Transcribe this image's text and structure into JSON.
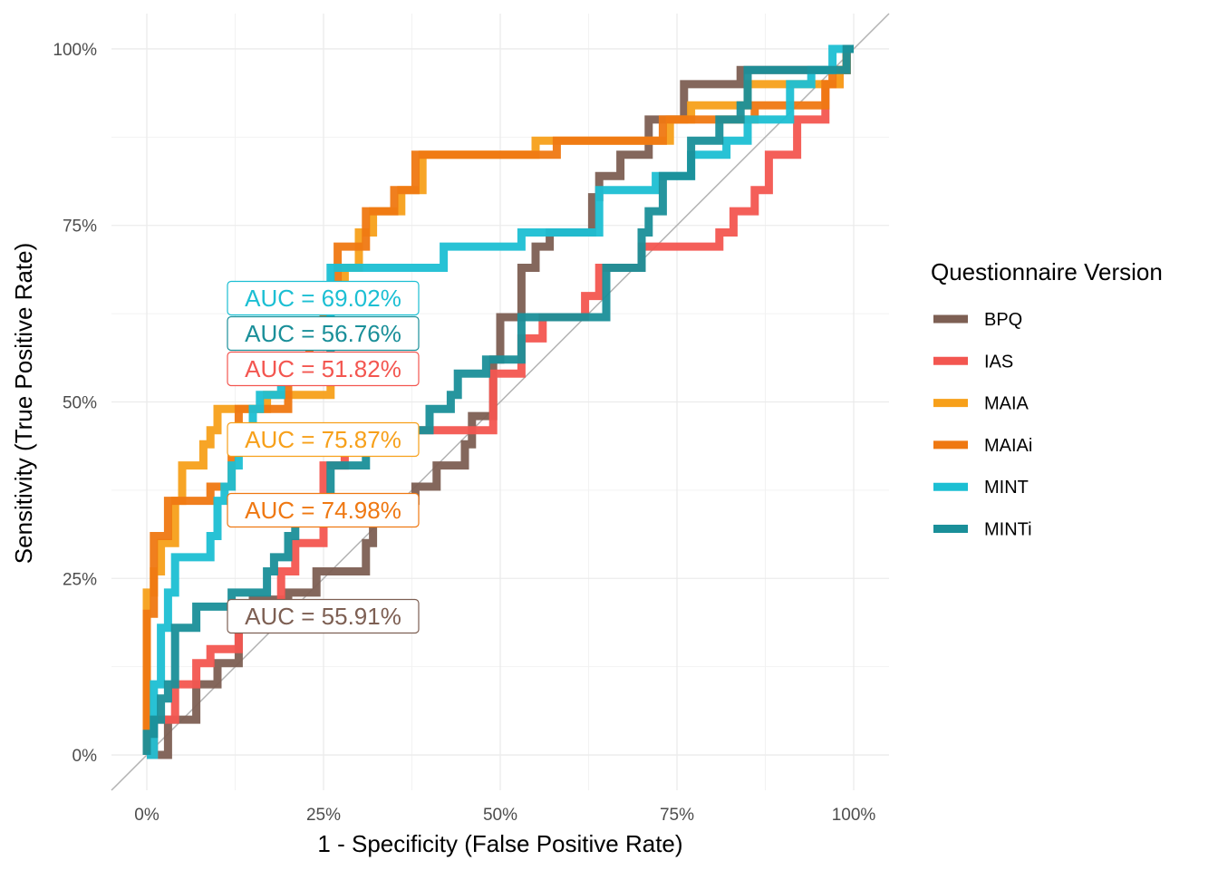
{
  "chart_data": {
    "type": "line",
    "title": "",
    "xlabel": "1 - Specificity (False Positive Rate)",
    "ylabel": "Sensitivity (True Positive Rate)",
    "xlim": [
      -0.05,
      1.05
    ],
    "ylim": [
      -0.05,
      1.05
    ],
    "x_ticks": [
      "0%",
      "25%",
      "50%",
      "75%",
      "100%"
    ],
    "y_ticks": [
      "0%",
      "25%",
      "50%",
      "75%",
      "100%"
    ],
    "grid": true,
    "diagonal_reference": true,
    "legend": {
      "title": "Questionnaire Version",
      "position": "right"
    },
    "series": [
      {
        "name": "BPQ",
        "color": "#7d5f53",
        "auc_label": "AUC = 55.91%",
        "points": [
          [
            0,
            0
          ],
          [
            0.03,
            0
          ],
          [
            0.03,
            0.05
          ],
          [
            0.07,
            0.05
          ],
          [
            0.07,
            0.1
          ],
          [
            0.1,
            0.1
          ],
          [
            0.1,
            0.13
          ],
          [
            0.13,
            0.13
          ],
          [
            0.13,
            0.18
          ],
          [
            0.15,
            0.18
          ],
          [
            0.15,
            0.22
          ],
          [
            0.2,
            0.22
          ],
          [
            0.2,
            0.23
          ],
          [
            0.24,
            0.23
          ],
          [
            0.24,
            0.26
          ],
          [
            0.31,
            0.26
          ],
          [
            0.31,
            0.3
          ],
          [
            0.32,
            0.3
          ],
          [
            0.32,
            0.36
          ],
          [
            0.38,
            0.36
          ],
          [
            0.38,
            0.38
          ],
          [
            0.41,
            0.38
          ],
          [
            0.41,
            0.41
          ],
          [
            0.45,
            0.41
          ],
          [
            0.45,
            0.44
          ],
          [
            0.46,
            0.44
          ],
          [
            0.46,
            0.48
          ],
          [
            0.49,
            0.48
          ],
          [
            0.49,
            0.56
          ],
          [
            0.5,
            0.56
          ],
          [
            0.5,
            0.62
          ],
          [
            0.53,
            0.62
          ],
          [
            0.53,
            0.69
          ],
          [
            0.55,
            0.69
          ],
          [
            0.55,
            0.72
          ],
          [
            0.57,
            0.72
          ],
          [
            0.57,
            0.74
          ],
          [
            0.63,
            0.74
          ],
          [
            0.63,
            0.79
          ],
          [
            0.64,
            0.79
          ],
          [
            0.64,
            0.82
          ],
          [
            0.67,
            0.82
          ],
          [
            0.67,
            0.85
          ],
          [
            0.71,
            0.85
          ],
          [
            0.71,
            0.9
          ],
          [
            0.76,
            0.9
          ],
          [
            0.76,
            0.95
          ],
          [
            0.84,
            0.95
          ],
          [
            0.84,
            0.97
          ],
          [
            0.99,
            0.97
          ],
          [
            0.99,
            1.0
          ],
          [
            1.0,
            1.0
          ]
        ]
      },
      {
        "name": "IAS",
        "color": "#f35650",
        "auc_label": "AUC = 51.82%",
        "points": [
          [
            0,
            0
          ],
          [
            0.01,
            0
          ],
          [
            0.01,
            0.05
          ],
          [
            0.04,
            0.05
          ],
          [
            0.04,
            0.1
          ],
          [
            0.07,
            0.1
          ],
          [
            0.07,
            0.13
          ],
          [
            0.09,
            0.13
          ],
          [
            0.09,
            0.15
          ],
          [
            0.13,
            0.15
          ],
          [
            0.13,
            0.18
          ],
          [
            0.17,
            0.18
          ],
          [
            0.17,
            0.21
          ],
          [
            0.19,
            0.21
          ],
          [
            0.19,
            0.26
          ],
          [
            0.21,
            0.26
          ],
          [
            0.21,
            0.3
          ],
          [
            0.25,
            0.3
          ],
          [
            0.25,
            0.41
          ],
          [
            0.28,
            0.41
          ],
          [
            0.28,
            0.44
          ],
          [
            0.33,
            0.44
          ],
          [
            0.33,
            0.46
          ],
          [
            0.49,
            0.46
          ],
          [
            0.49,
            0.54
          ],
          [
            0.53,
            0.54
          ],
          [
            0.53,
            0.59
          ],
          [
            0.56,
            0.59
          ],
          [
            0.56,
            0.62
          ],
          [
            0.62,
            0.62
          ],
          [
            0.62,
            0.65
          ],
          [
            0.64,
            0.65
          ],
          [
            0.64,
            0.69
          ],
          [
            0.7,
            0.69
          ],
          [
            0.7,
            0.72
          ],
          [
            0.81,
            0.72
          ],
          [
            0.81,
            0.74
          ],
          [
            0.83,
            0.74
          ],
          [
            0.83,
            0.77
          ],
          [
            0.86,
            0.77
          ],
          [
            0.86,
            0.8
          ],
          [
            0.88,
            0.8
          ],
          [
            0.88,
            0.85
          ],
          [
            0.92,
            0.85
          ],
          [
            0.92,
            0.9
          ],
          [
            0.96,
            0.9
          ],
          [
            0.96,
            0.95
          ],
          [
            0.98,
            0.95
          ],
          [
            0.98,
            0.97
          ],
          [
            0.99,
            0.97
          ],
          [
            0.99,
            1.0
          ],
          [
            1.0,
            1.0
          ]
        ]
      },
      {
        "name": "MAIA",
        "color": "#f7a01a",
        "auc_label": "AUC = 75.87%",
        "points": [
          [
            0,
            0
          ],
          [
            0,
            0.23
          ],
          [
            0.01,
            0.23
          ],
          [
            0.01,
            0.26
          ],
          [
            0.02,
            0.26
          ],
          [
            0.02,
            0.3
          ],
          [
            0.04,
            0.3
          ],
          [
            0.04,
            0.36
          ],
          [
            0.05,
            0.36
          ],
          [
            0.05,
            0.41
          ],
          [
            0.08,
            0.41
          ],
          [
            0.08,
            0.44
          ],
          [
            0.09,
            0.44
          ],
          [
            0.09,
            0.46
          ],
          [
            0.1,
            0.46
          ],
          [
            0.1,
            0.49
          ],
          [
            0.17,
            0.49
          ],
          [
            0.17,
            0.51
          ],
          [
            0.26,
            0.51
          ],
          [
            0.26,
            0.64
          ],
          [
            0.28,
            0.64
          ],
          [
            0.28,
            0.69
          ],
          [
            0.3,
            0.69
          ],
          [
            0.3,
            0.74
          ],
          [
            0.32,
            0.74
          ],
          [
            0.32,
            0.77
          ],
          [
            0.36,
            0.77
          ],
          [
            0.36,
            0.8
          ],
          [
            0.39,
            0.8
          ],
          [
            0.39,
            0.85
          ],
          [
            0.55,
            0.85
          ],
          [
            0.55,
            0.87
          ],
          [
            0.74,
            0.87
          ],
          [
            0.74,
            0.9
          ],
          [
            0.77,
            0.9
          ],
          [
            0.77,
            0.92
          ],
          [
            0.85,
            0.92
          ],
          [
            0.85,
            0.95
          ],
          [
            0.98,
            0.95
          ],
          [
            0.98,
            0.97
          ],
          [
            0.99,
            0.97
          ],
          [
            0.99,
            1.0
          ],
          [
            1.0,
            1.0
          ]
        ]
      },
      {
        "name": "MAIAi",
        "color": "#ef7812",
        "auc_label": "AUC = 74.98%",
        "points": [
          [
            0,
            0
          ],
          [
            0,
            0.2
          ],
          [
            0.01,
            0.2
          ],
          [
            0.01,
            0.31
          ],
          [
            0.03,
            0.31
          ],
          [
            0.03,
            0.36
          ],
          [
            0.09,
            0.36
          ],
          [
            0.09,
            0.38
          ],
          [
            0.12,
            0.38
          ],
          [
            0.12,
            0.44
          ],
          [
            0.13,
            0.44
          ],
          [
            0.13,
            0.49
          ],
          [
            0.2,
            0.49
          ],
          [
            0.2,
            0.54
          ],
          [
            0.23,
            0.54
          ],
          [
            0.23,
            0.59
          ],
          [
            0.25,
            0.59
          ],
          [
            0.25,
            0.64
          ],
          [
            0.27,
            0.64
          ],
          [
            0.27,
            0.72
          ],
          [
            0.31,
            0.72
          ],
          [
            0.31,
            0.77
          ],
          [
            0.35,
            0.77
          ],
          [
            0.35,
            0.8
          ],
          [
            0.38,
            0.8
          ],
          [
            0.38,
            0.85
          ],
          [
            0.58,
            0.85
          ],
          [
            0.58,
            0.87
          ],
          [
            0.73,
            0.87
          ],
          [
            0.73,
            0.9
          ],
          [
            0.86,
            0.9
          ],
          [
            0.86,
            0.92
          ],
          [
            0.96,
            0.92
          ],
          [
            0.96,
            0.95
          ],
          [
            0.97,
            0.95
          ],
          [
            0.97,
            0.97
          ],
          [
            0.99,
            0.97
          ],
          [
            0.99,
            1.0
          ],
          [
            1.0,
            1.0
          ]
        ]
      },
      {
        "name": "MINT",
        "color": "#1cbfd3",
        "auc_label": "AUC = 69.02%",
        "points": [
          [
            0,
            0
          ],
          [
            0.01,
            0
          ],
          [
            0.01,
            0.1
          ],
          [
            0.02,
            0.1
          ],
          [
            0.02,
            0.18
          ],
          [
            0.03,
            0.18
          ],
          [
            0.03,
            0.23
          ],
          [
            0.04,
            0.23
          ],
          [
            0.04,
            0.28
          ],
          [
            0.09,
            0.28
          ],
          [
            0.09,
            0.31
          ],
          [
            0.1,
            0.31
          ],
          [
            0.1,
            0.36
          ],
          [
            0.11,
            0.36
          ],
          [
            0.11,
            0.38
          ],
          [
            0.12,
            0.38
          ],
          [
            0.12,
            0.41
          ],
          [
            0.13,
            0.41
          ],
          [
            0.13,
            0.46
          ],
          [
            0.15,
            0.46
          ],
          [
            0.15,
            0.49
          ],
          [
            0.16,
            0.49
          ],
          [
            0.16,
            0.51
          ],
          [
            0.19,
            0.51
          ],
          [
            0.19,
            0.54
          ],
          [
            0.26,
            0.54
          ],
          [
            0.26,
            0.69
          ],
          [
            0.42,
            0.69
          ],
          [
            0.42,
            0.72
          ],
          [
            0.53,
            0.72
          ],
          [
            0.53,
            0.74
          ],
          [
            0.64,
            0.74
          ],
          [
            0.64,
            0.8
          ],
          [
            0.72,
            0.8
          ],
          [
            0.72,
            0.82
          ],
          [
            0.77,
            0.82
          ],
          [
            0.77,
            0.85
          ],
          [
            0.82,
            0.85
          ],
          [
            0.82,
            0.87
          ],
          [
            0.85,
            0.87
          ],
          [
            0.85,
            0.9
          ],
          [
            0.91,
            0.9
          ],
          [
            0.91,
            0.95
          ],
          [
            0.94,
            0.95
          ],
          [
            0.94,
            0.97
          ],
          [
            0.97,
            0.97
          ],
          [
            0.97,
            1.0
          ],
          [
            1.0,
            1.0
          ]
        ]
      },
      {
        "name": "MINTi",
        "color": "#1a8f99",
        "auc_label": "AUC = 56.76%",
        "points": [
          [
            0,
            0
          ],
          [
            0,
            0.03
          ],
          [
            0.01,
            0.03
          ],
          [
            0.01,
            0.05
          ],
          [
            0.02,
            0.05
          ],
          [
            0.02,
            0.08
          ],
          [
            0.03,
            0.08
          ],
          [
            0.03,
            0.1
          ],
          [
            0.04,
            0.1
          ],
          [
            0.04,
            0.18
          ],
          [
            0.07,
            0.18
          ],
          [
            0.07,
            0.21
          ],
          [
            0.12,
            0.21
          ],
          [
            0.12,
            0.23
          ],
          [
            0.17,
            0.23
          ],
          [
            0.17,
            0.26
          ],
          [
            0.18,
            0.26
          ],
          [
            0.18,
            0.28
          ],
          [
            0.2,
            0.28
          ],
          [
            0.2,
            0.31
          ],
          [
            0.21,
            0.31
          ],
          [
            0.21,
            0.36
          ],
          [
            0.26,
            0.36
          ],
          [
            0.26,
            0.41
          ],
          [
            0.31,
            0.41
          ],
          [
            0.31,
            0.46
          ],
          [
            0.4,
            0.46
          ],
          [
            0.4,
            0.49
          ],
          [
            0.43,
            0.49
          ],
          [
            0.43,
            0.51
          ],
          [
            0.44,
            0.51
          ],
          [
            0.44,
            0.54
          ],
          [
            0.48,
            0.54
          ],
          [
            0.48,
            0.56
          ],
          [
            0.53,
            0.56
          ],
          [
            0.53,
            0.62
          ],
          [
            0.65,
            0.62
          ],
          [
            0.65,
            0.69
          ],
          [
            0.7,
            0.69
          ],
          [
            0.7,
            0.74
          ],
          [
            0.71,
            0.74
          ],
          [
            0.71,
            0.77
          ],
          [
            0.73,
            0.77
          ],
          [
            0.73,
            0.82
          ],
          [
            0.77,
            0.82
          ],
          [
            0.77,
            0.87
          ],
          [
            0.81,
            0.87
          ],
          [
            0.81,
            0.9
          ],
          [
            0.84,
            0.9
          ],
          [
            0.84,
            0.92
          ],
          [
            0.85,
            0.92
          ],
          [
            0.85,
            0.97
          ],
          [
            0.99,
            0.97
          ],
          [
            0.99,
            1.0
          ],
          [
            1.0,
            1.0
          ]
        ]
      }
    ]
  }
}
